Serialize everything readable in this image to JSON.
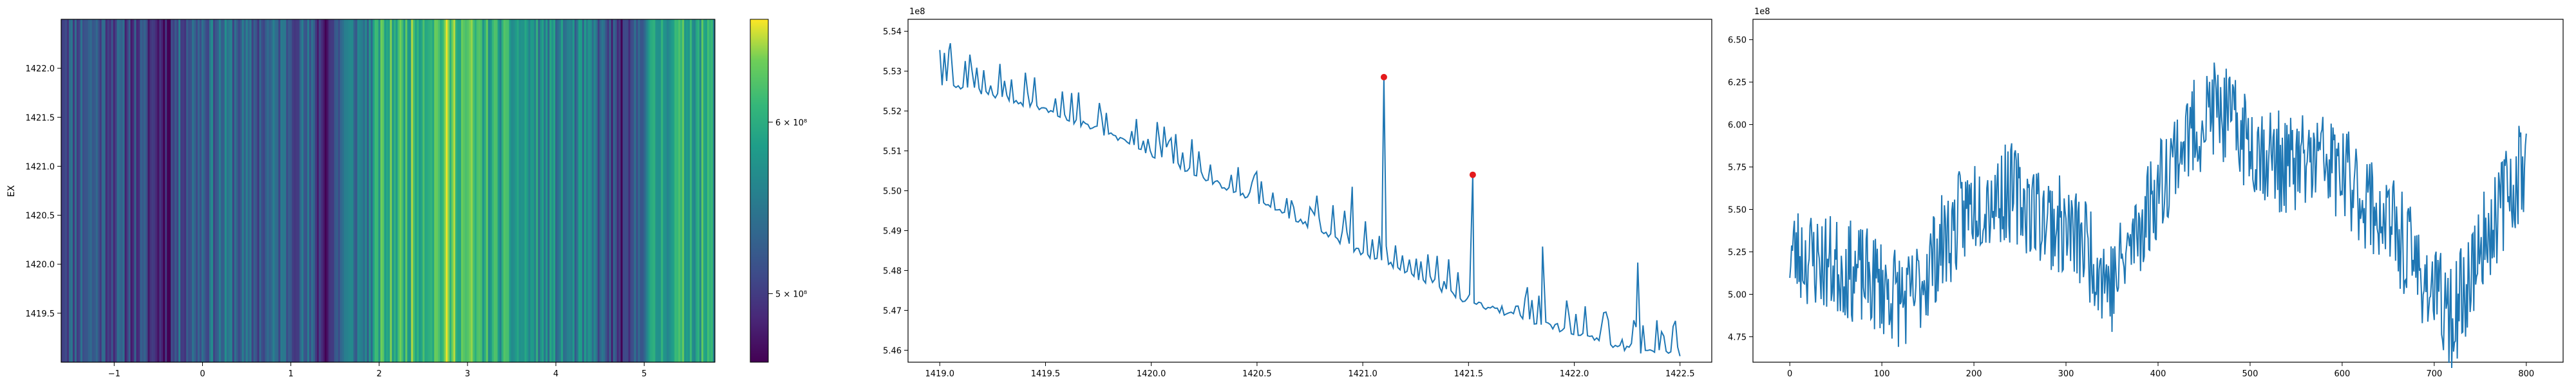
{
  "chart_data": [
    {
      "type": "heatmap",
      "ylabel": "EX",
      "xlim": [
        -1.6,
        5.8
      ],
      "ylim": [
        1419.0,
        1422.5
      ],
      "x_ticks": [
        "−1",
        "0",
        "1",
        "2",
        "3",
        "4",
        "5"
      ],
      "y_ticks": [
        "1419.5",
        "1420.0",
        "1420.5",
        "1421.0",
        "1421.5",
        "1422.0"
      ],
      "colormap": "viridis",
      "colorbar": {
        "min": 460000000,
        "max": 660000000,
        "ticks": [
          "5 × 10⁸",
          "6 × 10⁸"
        ]
      },
      "column_profile_x": [
        -1.6,
        -1.3,
        -1.0,
        -0.7,
        -0.4,
        -0.3,
        0.0,
        0.3,
        0.6,
        0.9,
        1.2,
        1.4,
        1.6,
        1.9,
        2.0,
        2.3,
        2.6,
        2.9,
        3.2,
        3.5,
        3.8,
        4.1,
        4.4,
        4.8,
        5.0,
        5.2,
        5.5,
        5.8
      ],
      "column_profile_values": [
        520000000,
        530000000,
        515000000,
        505000000,
        480000000,
        520000000,
        535000000,
        540000000,
        520000000,
        535000000,
        525000000,
        480000000,
        545000000,
        555000000,
        600000000,
        610000000,
        620000000,
        625000000,
        600000000,
        585000000,
        570000000,
        555000000,
        550000000,
        475000000,
        560000000,
        590000000,
        600000000,
        590000000
      ]
    },
    {
      "type": "line",
      "x_range": [
        1419.0,
        1422.5
      ],
      "xlim": [
        1418.85,
        1422.65
      ],
      "ylim": [
        545700000,
        554300000
      ],
      "offset_label": "1e8",
      "x_ticks": [
        "1419.0",
        "1419.5",
        "1420.0",
        "1420.5",
        "1421.0",
        "1421.5",
        "1422.0",
        "1422.5"
      ],
      "y_ticks": [
        "5.46",
        "5.47",
        "5.48",
        "5.49",
        "5.50",
        "5.51",
        "5.52",
        "5.53",
        "5.54"
      ],
      "trend_x": [
        1419.0,
        1419.25,
        1419.5,
        1419.75,
        1420.0,
        1420.25,
        1420.5,
        1420.75,
        1421.0,
        1421.25,
        1421.5,
        1421.75,
        1422.0,
        1422.25,
        1422.5
      ],
      "trend_y": [
        552800000,
        552500000,
        552100000,
        551600000,
        551000000,
        550400000,
        549800000,
        549200000,
        548500000,
        547900000,
        547300000,
        546900000,
        546500000,
        546100000,
        545950000
      ],
      "spikes": [
        {
          "x": 1419.05,
          "y": 553700000
        },
        {
          "x": 1420.95,
          "y": 550100000
        },
        {
          "x": 1421.1,
          "y": 552850000
        },
        {
          "x": 1421.52,
          "y": 550400000
        },
        {
          "x": 1421.85,
          "y": 548600000
        },
        {
          "x": 1422.3,
          "y": 548200000
        }
      ],
      "markers": [
        {
          "x": 1421.1,
          "y": 552850000
        },
        {
          "x": 1421.52,
          "y": 550400000
        }
      ],
      "line_color": "#1f77b4",
      "marker_color": "#e41a1c"
    },
    {
      "type": "line",
      "x_range": [
        0,
        800
      ],
      "xlim": [
        -40,
        840
      ],
      "ylim": [
        460000000,
        662000000
      ],
      "offset_label": "1e8",
      "x_ticks": [
        "0",
        "100",
        "200",
        "300",
        "400",
        "500",
        "600",
        "700",
        "800"
      ],
      "y_ticks": [
        "4.75",
        "5.00",
        "5.25",
        "5.50",
        "5.75",
        "6.00",
        "6.25",
        "6.50"
      ],
      "trend_x": [
        0,
        30,
        60,
        100,
        130,
        160,
        200,
        240,
        280,
        320,
        350,
        380,
        420,
        460,
        500,
        540,
        580,
        620,
        660,
        700,
        720,
        760,
        800
      ],
      "trend_y": [
        525000000,
        520000000,
        515000000,
        505000000,
        495000000,
        525000000,
        555000000,
        560000000,
        545000000,
        530000000,
        505000000,
        540000000,
        585000000,
        610000000,
        590000000,
        575000000,
        580000000,
        560000000,
        535000000,
        500000000,
        485000000,
        540000000,
        580000000
      ],
      "line_color": "#1f77b4"
    }
  ]
}
